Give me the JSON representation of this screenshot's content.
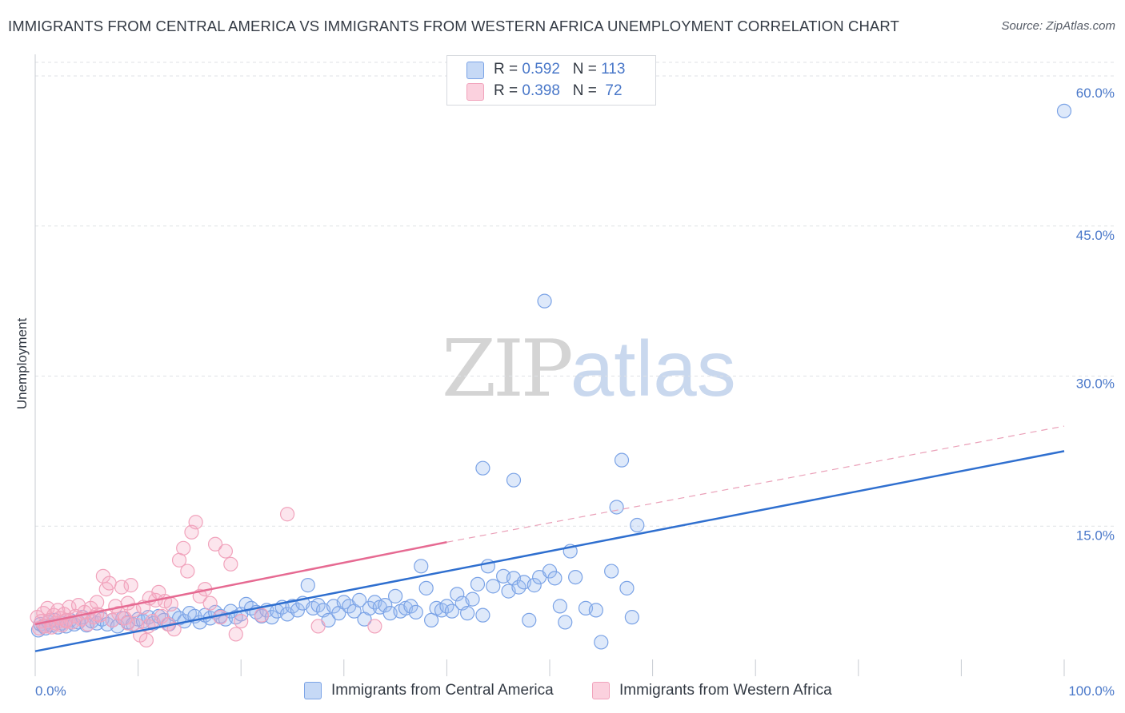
{
  "chart_data": {
    "type": "scatter",
    "title": "IMMIGRANTS FROM CENTRAL AMERICA VS IMMIGRANTS FROM WESTERN AFRICA UNEMPLOYMENT CORRELATION CHART",
    "source": "Source: ZipAtlas.com",
    "ylabel": "Unemployment",
    "xlim": [
      0,
      100
    ],
    "ylim": [
      0,
      62
    ],
    "y_ticks": [
      {
        "value": 15,
        "label": "15.0%"
      },
      {
        "value": 30,
        "label": "30.0%"
      },
      {
        "value": 45,
        "label": "45.0%"
      },
      {
        "value": 60,
        "label": "60.0%"
      }
    ],
    "x_tick_labels": {
      "min": "0.0%",
      "max": "100.0%"
    },
    "grid": "horizontal dashed",
    "legend": {
      "placement": "top-center",
      "rows": [
        {
          "r_label": "R = ",
          "r_value": "0.592",
          "n_label": "N = ",
          "n_value": "113"
        },
        {
          "r_label": "R = ",
          "r_value": "0.398",
          "n_label": "N = ",
          "n_value": " 72"
        }
      ]
    },
    "series": [
      {
        "name": "Immigrants from Central America",
        "color": "#7ba3e6",
        "line_color": "#2f6fcf",
        "trend": {
          "x0": 0,
          "y0": 2.5,
          "x1": 100,
          "y1": 22.5,
          "dashed_from": null
        },
        "points": [
          [
            0.3,
            4.6
          ],
          [
            0.5,
            5.2
          ],
          [
            0.8,
            5.0
          ],
          [
            1.0,
            4.8
          ],
          [
            1.3,
            5.4
          ],
          [
            1.6,
            5.1
          ],
          [
            1.9,
            5.6
          ],
          [
            2.2,
            4.9
          ],
          [
            2.6,
            5.3
          ],
          [
            3.0,
            5.0
          ],
          [
            3.4,
            5.6
          ],
          [
            3.8,
            5.2
          ],
          [
            4.2,
            5.4
          ],
          [
            4.6,
            5.9
          ],
          [
            5.0,
            5.1
          ],
          [
            5.5,
            5.5
          ],
          [
            6.0,
            5.3
          ],
          [
            6.5,
            5.7
          ],
          [
            7.0,
            5.2
          ],
          [
            7.5,
            5.6
          ],
          [
            8.0,
            5.0
          ],
          [
            8.5,
            5.8
          ],
          [
            9.0,
            5.4
          ],
          [
            9.5,
            5.2
          ],
          [
            10.0,
            5.7
          ],
          [
            10.5,
            5.5
          ],
          [
            11.0,
            5.9
          ],
          [
            11.5,
            5.3
          ],
          [
            12.0,
            6.0
          ],
          [
            12.5,
            5.6
          ],
          [
            13.0,
            5.2
          ],
          [
            13.5,
            6.2
          ],
          [
            14.0,
            5.8
          ],
          [
            14.5,
            5.5
          ],
          [
            15.0,
            6.3
          ],
          [
            15.5,
            6.0
          ],
          [
            16.0,
            5.4
          ],
          [
            16.5,
            6.1
          ],
          [
            17.0,
            5.8
          ],
          [
            17.5,
            6.4
          ],
          [
            18.0,
            6.0
          ],
          [
            18.5,
            5.7
          ],
          [
            19.0,
            6.5
          ],
          [
            19.5,
            5.9
          ],
          [
            20.0,
            6.2
          ],
          [
            20.5,
            7.2
          ],
          [
            21.0,
            6.8
          ],
          [
            21.5,
            6.4
          ],
          [
            22.0,
            6.0
          ],
          [
            22.5,
            6.6
          ],
          [
            23.0,
            5.9
          ],
          [
            23.5,
            6.5
          ],
          [
            24.0,
            6.9
          ],
          [
            24.5,
            6.2
          ],
          [
            25.0,
            7.0
          ],
          [
            25.5,
            6.6
          ],
          [
            26.0,
            7.3
          ],
          [
            26.5,
            9.1
          ],
          [
            27.0,
            6.8
          ],
          [
            27.5,
            7.1
          ],
          [
            28.0,
            6.6
          ],
          [
            28.5,
            5.6
          ],
          [
            29.0,
            7.0
          ],
          [
            29.5,
            6.3
          ],
          [
            30.0,
            7.4
          ],
          [
            30.5,
            7.0
          ],
          [
            31.0,
            6.5
          ],
          [
            31.5,
            7.6
          ],
          [
            32.0,
            5.7
          ],
          [
            32.5,
            6.8
          ],
          [
            33.0,
            7.4
          ],
          [
            33.5,
            6.9
          ],
          [
            34.0,
            7.1
          ],
          [
            34.5,
            6.3
          ],
          [
            35.0,
            8.0
          ],
          [
            35.5,
            6.5
          ],
          [
            36.0,
            6.8
          ],
          [
            36.5,
            7.0
          ],
          [
            37.0,
            6.4
          ],
          [
            37.5,
            11.0
          ],
          [
            38.0,
            8.8
          ],
          [
            38.5,
            5.6
          ],
          [
            39.0,
            6.8
          ],
          [
            39.5,
            6.6
          ],
          [
            40.0,
            7.0
          ],
          [
            40.5,
            6.5
          ],
          [
            41.0,
            8.2
          ],
          [
            41.5,
            7.3
          ],
          [
            42.0,
            6.3
          ],
          [
            42.5,
            7.7
          ],
          [
            43.0,
            9.2
          ],
          [
            43.5,
            6.1
          ],
          [
            44.0,
            11.0
          ],
          [
            44.5,
            9.0
          ],
          [
            45.5,
            10.0
          ],
          [
            46.0,
            8.5
          ],
          [
            46.5,
            9.8
          ],
          [
            47.0,
            8.9
          ],
          [
            47.5,
            9.4
          ],
          [
            48.0,
            5.6
          ],
          [
            48.5,
            9.1
          ],
          [
            49.0,
            9.9
          ],
          [
            49.5,
            37.5
          ],
          [
            50.0,
            10.5
          ],
          [
            50.5,
            9.8
          ],
          [
            51.0,
            7.0
          ],
          [
            51.5,
            5.4
          ],
          [
            52.0,
            12.5
          ],
          [
            52.5,
            9.9
          ],
          [
            53.5,
            6.8
          ],
          [
            54.5,
            6.6
          ],
          [
            55.0,
            3.4
          ],
          [
            56.0,
            10.5
          ],
          [
            57.5,
            8.8
          ],
          [
            58.5,
            15.1
          ],
          [
            58.0,
            5.9
          ],
          [
            56.5,
            16.9
          ],
          [
            57.0,
            21.6
          ],
          [
            43.5,
            20.8
          ],
          [
            46.5,
            19.6
          ],
          [
            100.0,
            56.5
          ]
        ]
      },
      {
        "name": "Immigrants from Western Africa",
        "color": "#f1a3bc",
        "line_color": "#e66a92",
        "trend": {
          "x0": 0,
          "y0": 5.2,
          "x1": 40,
          "y1": 13.4,
          "dashed_to": {
            "x": 100,
            "y": 25.0
          }
        },
        "points": [
          [
            0.2,
            5.9
          ],
          [
            0.4,
            4.8
          ],
          [
            0.6,
            5.5
          ],
          [
            0.8,
            6.3
          ],
          [
            1.0,
            5.0
          ],
          [
            1.2,
            6.8
          ],
          [
            1.4,
            5.6
          ],
          [
            1.6,
            4.9
          ],
          [
            1.8,
            6.1
          ],
          [
            2.0,
            5.3
          ],
          [
            2.2,
            6.6
          ],
          [
            2.4,
            5.8
          ],
          [
            2.6,
            5.1
          ],
          [
            2.8,
            6.2
          ],
          [
            3.0,
            5.5
          ],
          [
            3.3,
            6.9
          ],
          [
            3.6,
            5.4
          ],
          [
            3.9,
            6.0
          ],
          [
            4.2,
            7.1
          ],
          [
            4.5,
            5.7
          ],
          [
            4.8,
            6.4
          ],
          [
            5.1,
            5.2
          ],
          [
            5.4,
            6.8
          ],
          [
            5.7,
            5.9
          ],
          [
            6.0,
            7.4
          ],
          [
            6.3,
            6.1
          ],
          [
            6.6,
            10.0
          ],
          [
            6.9,
            8.7
          ],
          [
            7.2,
            9.3
          ],
          [
            7.5,
            5.6
          ],
          [
            7.8,
            7.0
          ],
          [
            8.1,
            6.3
          ],
          [
            8.4,
            8.9
          ],
          [
            8.7,
            5.8
          ],
          [
            9.0,
            7.3
          ],
          [
            9.3,
            9.1
          ],
          [
            9.6,
            6.6
          ],
          [
            9.9,
            5.1
          ],
          [
            10.2,
            4.1
          ],
          [
            10.5,
            6.9
          ],
          [
            10.8,
            3.6
          ],
          [
            11.1,
            7.8
          ],
          [
            11.4,
            5.5
          ],
          [
            11.7,
            7.6
          ],
          [
            12.0,
            8.4
          ],
          [
            12.3,
            6.0
          ],
          [
            12.6,
            7.5
          ],
          [
            12.9,
            5.2
          ],
          [
            13.2,
            7.2
          ],
          [
            13.5,
            4.7
          ],
          [
            14.0,
            11.6
          ],
          [
            14.4,
            12.8
          ],
          [
            14.8,
            10.5
          ],
          [
            15.2,
            14.4
          ],
          [
            15.6,
            15.4
          ],
          [
            16.0,
            8.0
          ],
          [
            16.5,
            8.7
          ],
          [
            17.0,
            7.3
          ],
          [
            17.5,
            13.2
          ],
          [
            18.0,
            5.9
          ],
          [
            18.5,
            12.5
          ],
          [
            19.0,
            11.2
          ],
          [
            19.5,
            4.2
          ],
          [
            20.0,
            5.5
          ],
          [
            22.0,
            6.1
          ],
          [
            24.5,
            16.2
          ],
          [
            27.5,
            5.0
          ],
          [
            33.0,
            5.0
          ],
          [
            9.0,
            5.3
          ],
          [
            11.0,
            5.0
          ],
          [
            6.0,
            6.2
          ],
          [
            3.0,
            5.6
          ]
        ]
      }
    ]
  },
  "bottom_legend": {
    "central_america": "Immigrants from Central America",
    "western_africa": "Immigrants from Western Africa"
  },
  "watermark": {
    "zip": "ZIP",
    "atlas": "atlas"
  }
}
